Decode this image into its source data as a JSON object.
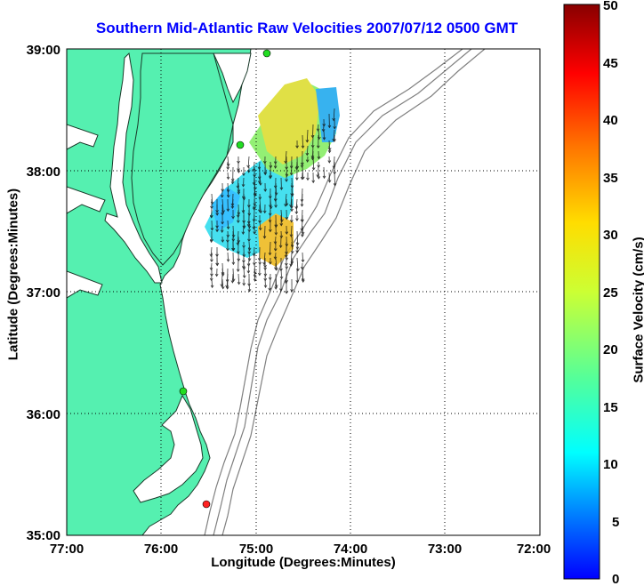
{
  "title": "Southern Mid-Atlantic Raw Velocities 2007/07/12 0500 GMT",
  "axes": {
    "xlabel": "Longitude (Degrees:Minutes)",
    "ylabel": "Latitude (Degrees:Minutes)",
    "x_ticks": [
      "77:00",
      "76:00",
      "75:00",
      "74:00",
      "73:00",
      "72:00"
    ],
    "y_ticks": [
      "39:00",
      "38:00",
      "37:00",
      "36:00",
      "35:00"
    ],
    "x_range_deg_west": [
      77,
      72
    ],
    "y_range_deg_north": [
      35,
      39
    ],
    "grid": "dotted"
  },
  "colorbar": {
    "label": "Surface Velocity (cm/s)",
    "ticks": [
      "50",
      "45",
      "40",
      "35",
      "30",
      "25",
      "20",
      "15",
      "10",
      "5",
      "0"
    ],
    "range": [
      0,
      50
    ],
    "colormap": "jet"
  },
  "colors": {
    "land": "#55f0b0",
    "water": "#ffffff",
    "coast": "#1a3a2a",
    "title": "#0000ff",
    "bathymetry": "#808080",
    "station_green": "#22dd22",
    "station_red": "#ff2222"
  },
  "stations": [
    {
      "lon": -74.9,
      "lat": 38.97,
      "color": "green"
    },
    {
      "lon": -75.16,
      "lat": 38.22,
      "color": "green"
    },
    {
      "lon": -75.76,
      "lat": 36.19,
      "color": "green"
    },
    {
      "lon": -75.52,
      "lat": 35.25,
      "color": "red"
    }
  ]
}
